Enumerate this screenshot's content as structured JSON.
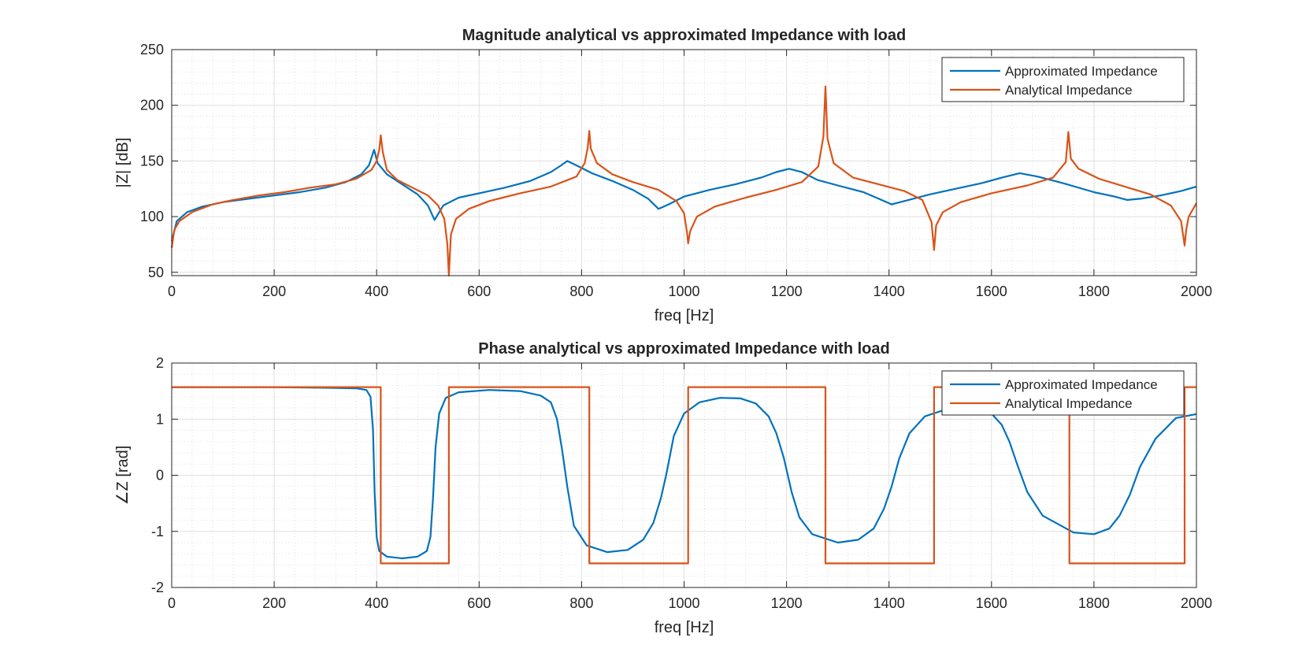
{
  "figure": {
    "background": "#ffffff"
  },
  "chart_data": [
    {
      "type": "line",
      "title": "Magnitude analytical vs approximated Impedance with load",
      "xlabel": "freq [Hz]",
      "ylabel": "|Z| [dB]",
      "xlim": [
        0,
        2000
      ],
      "ylim": [
        47,
        250
      ],
      "xticks": [
        0,
        200,
        400,
        600,
        800,
        1000,
        1200,
        1400,
        1600,
        1800,
        2000
      ],
      "yticks": [
        50,
        100,
        150,
        200,
        250
      ],
      "grid": true,
      "minor_grid": true,
      "legend_position": "top-right",
      "series": [
        {
          "name": "Approximated Impedance",
          "color": "#0072BD",
          "x": [
            0,
            10,
            30,
            60,
            100,
            150,
            200,
            250,
            300,
            340,
            370,
            385,
            395,
            402,
            420,
            450,
            480,
            500,
            513,
            530,
            560,
            600,
            650,
            700,
            740,
            760,
            772,
            790,
            820,
            860,
            900,
            930,
            950,
            970,
            1000,
            1050,
            1100,
            1150,
            1180,
            1205,
            1230,
            1260,
            1300,
            1350,
            1380,
            1405,
            1430,
            1480,
            1530,
            1580,
            1620,
            1655,
            1690,
            1740,
            1800,
            1840,
            1865,
            1890,
            1930,
            1970,
            2000
          ],
          "y": [
            78,
            96,
            104,
            109,
            113,
            116,
            119,
            122,
            126,
            131,
            138,
            146,
            160,
            148,
            138,
            129,
            120,
            110,
            97,
            110,
            117,
            121,
            126,
            132,
            140,
            146,
            150,
            146,
            139,
            132,
            124,
            116,
            107,
            111,
            118,
            124,
            129,
            135,
            140,
            143,
            140,
            133,
            128,
            122,
            116,
            111,
            114,
            120,
            125,
            130,
            135,
            139,
            136,
            130,
            122,
            118,
            115,
            116,
            119,
            123,
            127
          ]
        },
        {
          "name": "Analytical Impedance",
          "color": "#D95319",
          "x": [
            0,
            5,
            15,
            40,
            80,
            120,
            170,
            220,
            270,
            320,
            360,
            390,
            400,
            405,
            408,
            412,
            420,
            440,
            470,
            500,
            520,
            532,
            538,
            541,
            545,
            555,
            580,
            620,
            680,
            740,
            790,
            806,
            812,
            815,
            818,
            830,
            860,
            900,
            950,
            985,
            1000,
            1006,
            1008,
            1012,
            1025,
            1060,
            1120,
            1180,
            1230,
            1262,
            1272,
            1276,
            1280,
            1292,
            1330,
            1380,
            1430,
            1465,
            1483,
            1488,
            1492,
            1505,
            1540,
            1600,
            1670,
            1720,
            1745,
            1750,
            1755,
            1770,
            1810,
            1860,
            1910,
            1950,
            1970,
            1977,
            1980,
            1985,
            2000
          ],
          "y": [
            72,
            88,
            96,
            104,
            111,
            115,
            119,
            122,
            126,
            129,
            134,
            142,
            150,
            160,
            173,
            158,
            142,
            133,
            126,
            119,
            110,
            98,
            75,
            47,
            84,
            98,
            107,
            114,
            121,
            127,
            136,
            148,
            162,
            177,
            161,
            148,
            138,
            131,
            124,
            114,
            103,
            85,
            76,
            87,
            100,
            109,
            117,
            124,
            131,
            145,
            172,
            217,
            170,
            148,
            135,
            129,
            123,
            115,
            95,
            70,
            92,
            104,
            113,
            121,
            128,
            135,
            149,
            176,
            152,
            143,
            134,
            127,
            120,
            110,
            96,
            74,
            88,
            100,
            112
          ]
        }
      ]
    },
    {
      "type": "line",
      "title": "Phase analytical vs approximated Impedance with load",
      "xlabel": "freq [Hz]",
      "ylabel": "∠Z [rad]",
      "xlim": [
        0,
        2000
      ],
      "ylim": [
        -2,
        2
      ],
      "xticks": [
        0,
        200,
        400,
        600,
        800,
        1000,
        1200,
        1400,
        1600,
        1800,
        2000
      ],
      "yticks": [
        -2,
        -1,
        0,
        1,
        2
      ],
      "grid": true,
      "minor_grid": true,
      "legend_position": "top-right",
      "series": [
        {
          "name": "Approximated Impedance",
          "color": "#0072BD",
          "x": [
            0,
            200,
            300,
            360,
            380,
            388,
            393,
            396,
            400,
            405,
            420,
            450,
            480,
            498,
            505,
            510,
            515,
            522,
            535,
            560,
            620,
            680,
            720,
            740,
            752,
            762,
            772,
            785,
            810,
            850,
            890,
            920,
            940,
            955,
            965,
            980,
            1000,
            1030,
            1070,
            1110,
            1140,
            1165,
            1180,
            1195,
            1210,
            1225,
            1250,
            1300,
            1340,
            1370,
            1390,
            1405,
            1420,
            1440,
            1470,
            1520,
            1560,
            1600,
            1620,
            1635,
            1650,
            1670,
            1700,
            1760,
            1800,
            1830,
            1850,
            1870,
            1890,
            1920,
            1960,
            2000
          ],
          "y": [
            1.57,
            1.57,
            1.56,
            1.55,
            1.52,
            1.4,
            0.8,
            -0.3,
            -1.1,
            -1.35,
            -1.45,
            -1.48,
            -1.45,
            -1.35,
            -1.1,
            -0.4,
            0.5,
            1.1,
            1.38,
            1.48,
            1.52,
            1.5,
            1.42,
            1.3,
            1.0,
            0.45,
            -0.2,
            -0.9,
            -1.25,
            -1.37,
            -1.33,
            -1.15,
            -0.85,
            -0.4,
            0.0,
            0.7,
            1.1,
            1.3,
            1.38,
            1.37,
            1.28,
            1.05,
            0.75,
            0.3,
            -0.3,
            -0.75,
            -1.05,
            -1.2,
            -1.15,
            -0.95,
            -0.6,
            -0.2,
            0.3,
            0.75,
            1.05,
            1.2,
            1.2,
            1.1,
            0.9,
            0.6,
            0.2,
            -0.3,
            -0.72,
            -1.02,
            -1.05,
            -0.95,
            -0.72,
            -0.35,
            0.15,
            0.65,
            1.02,
            1.09
          ]
        },
        {
          "name": "Analytical Impedance",
          "color": "#D95319",
          "x": [
            0,
            408,
            408,
            541,
            541,
            815,
            815,
            1008,
            1008,
            1276,
            1276,
            1488,
            1488,
            1752,
            1752,
            1977,
            1977,
            2000
          ],
          "y": [
            1.57,
            1.57,
            -1.57,
            -1.57,
            1.57,
            1.57,
            -1.57,
            -1.57,
            1.57,
            1.57,
            -1.57,
            -1.57,
            1.57,
            1.57,
            -1.57,
            -1.57,
            1.57,
            1.57
          ]
        }
      ]
    }
  ]
}
